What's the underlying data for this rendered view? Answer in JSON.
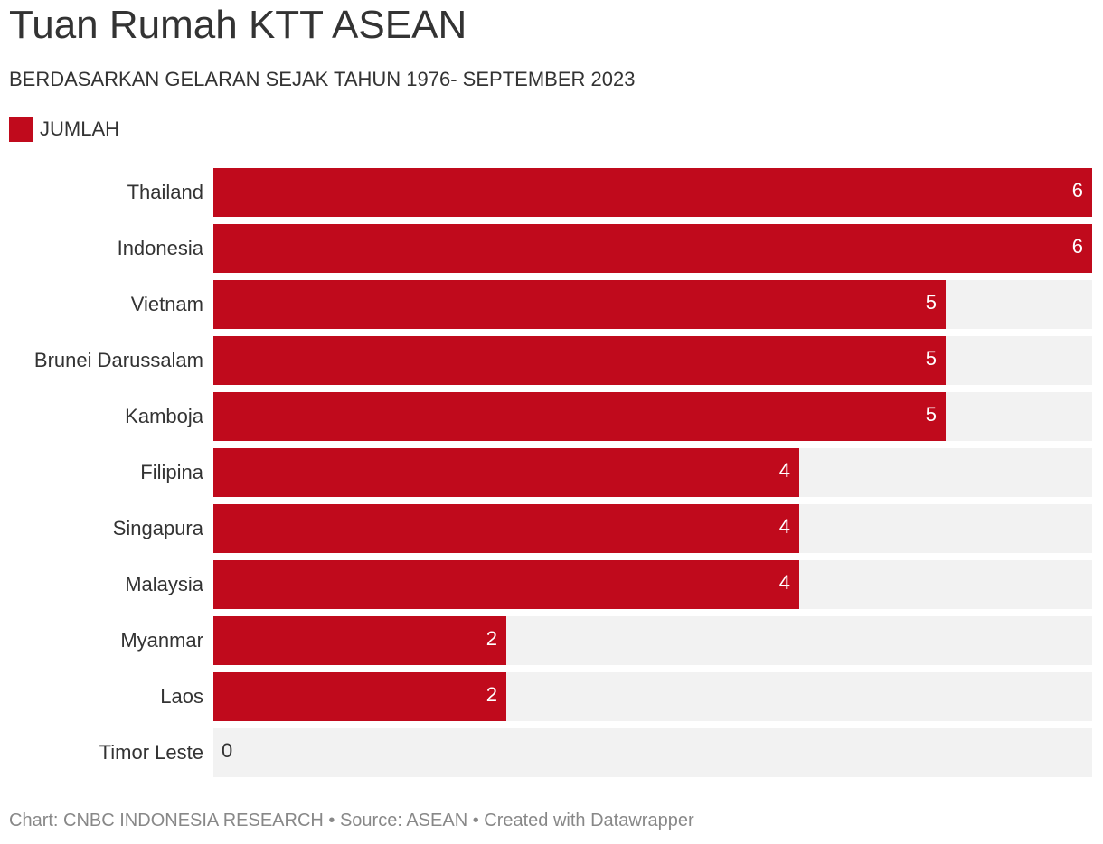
{
  "title": "Tuan Rumah KTT ASEAN",
  "subtitle": "BERDASARKAN GELARAN SEJAK TAHUN 1976- SEPTEMBER 2023",
  "footer": "Chart: CNBC INDONESIA RESEARCH • Source: ASEAN • Created with Datawrapper",
  "colors": {
    "bar": "#c00a1c",
    "track": "#f2f2f2"
  },
  "chart_data": {
    "type": "bar",
    "orientation": "horizontal",
    "categories": [
      "Thailand",
      "Indonesia",
      "Vietnam",
      "Brunei Darussalam",
      "Kamboja",
      "Filipina",
      "Singapura",
      "Malaysia",
      "Myanmar",
      "Laos",
      "Timor Leste"
    ],
    "series": [
      {
        "name": "JUMLAH",
        "values": [
          6,
          6,
          5,
          5,
          5,
          4,
          4,
          4,
          2,
          2,
          0
        ]
      }
    ],
    "xlim": [
      0,
      6
    ],
    "grid": false,
    "legend_position": "top-left",
    "data_labels": true
  }
}
